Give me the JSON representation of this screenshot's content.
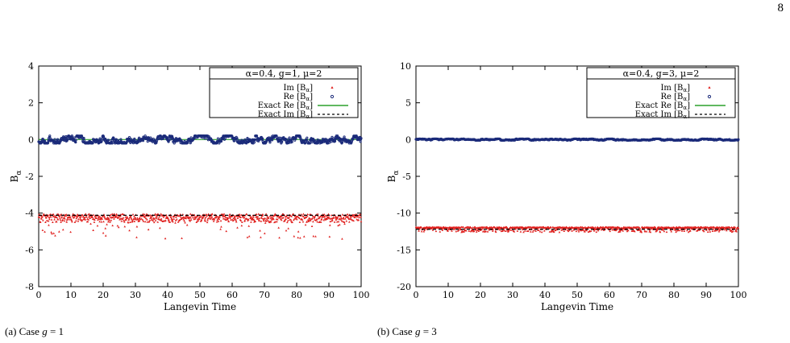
{
  "page_number": "8",
  "captions": {
    "a_prefix": "(a) Case ",
    "a_var": "g",
    "a_rest": " = 1",
    "b_prefix": "(b) Case ",
    "b_var": "g",
    "b_rest": " = 3"
  },
  "colors": {
    "im_points": "#e0201e",
    "re_points": "#1b2b7a",
    "exact_re": "#2ca02c",
    "exact_im": "#000000"
  },
  "chart_data": [
    {
      "type": "scatter",
      "panel": "a",
      "title": "α=0.4, g=1, μ=2",
      "xlabel": "Langevin Time",
      "ylabel": "B",
      "ylabel_sub": "α",
      "xlim": [
        0,
        100
      ],
      "ylim": [
        -8,
        4
      ],
      "xticks": [
        "0",
        "10",
        "20",
        "30",
        "40",
        "50",
        "60",
        "70",
        "80",
        "90",
        "100"
      ],
      "yticks": [
        "4",
        "2",
        "0",
        "-2",
        "-4",
        "-6",
        "-8"
      ],
      "grid": false,
      "legend_position": "top-right",
      "series": [
        {
          "name": "Im [B",
          "name_sub": "α",
          "name_tail": "]",
          "kind": "points",
          "mean": -4.2,
          "spread_low": -5.5,
          "spread_high": -4.05
        },
        {
          "name": "Re [B",
          "name_sub": "α",
          "name_tail": "]",
          "kind": "points",
          "mean": 0.0,
          "spread_low": -0.2,
          "spread_high": 0.2
        },
        {
          "name": "Exact Re [B",
          "name_sub": "α",
          "name_tail": "]",
          "kind": "line",
          "value": 0.0
        },
        {
          "name": "Exact Im [B",
          "name_sub": "α",
          "name_tail": "]",
          "kind": "dashed",
          "value": -4.12
        }
      ]
    },
    {
      "type": "scatter",
      "panel": "b",
      "title": "α=0.4, g=3, μ=2",
      "xlabel": "Langevin Time",
      "ylabel": "B",
      "ylabel_sub": "α",
      "xlim": [
        0,
        100
      ],
      "ylim": [
        -20,
        10
      ],
      "xticks": [
        "0",
        "10",
        "20",
        "30",
        "40",
        "50",
        "60",
        "70",
        "80",
        "90",
        "100"
      ],
      "yticks": [
        "10",
        "5",
        "0",
        "-5",
        "-10",
        "-15",
        "-20"
      ],
      "grid": false,
      "legend_position": "top-right",
      "series": [
        {
          "name": "Im [B",
          "name_sub": "α",
          "name_tail": "]",
          "kind": "points",
          "mean": -12.2,
          "spread_low": -12.6,
          "spread_high": -11.9
        },
        {
          "name": "Re [B",
          "name_sub": "α",
          "name_tail": "]",
          "kind": "points",
          "mean": 0.0,
          "spread_low": -0.1,
          "spread_high": 0.1
        },
        {
          "name": "Exact Re [B",
          "name_sub": "α",
          "name_tail": "]",
          "kind": "line",
          "value": 0.0
        },
        {
          "name": "Exact Im [B",
          "name_sub": "α",
          "name_tail": "]",
          "kind": "dashed",
          "value": -12.2
        }
      ]
    }
  ]
}
